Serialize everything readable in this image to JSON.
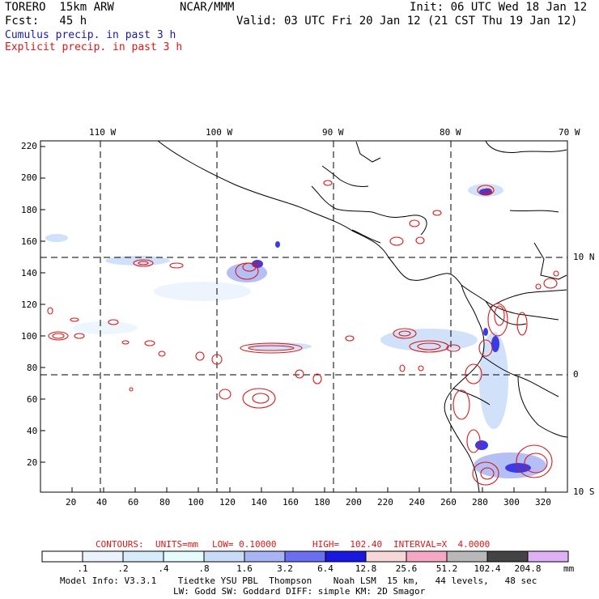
{
  "header": {
    "model_line": "TORERO  15km ARW",
    "org": "NCAR/MMM",
    "init": "Init: 06 UTC Wed 18 Jan 12",
    "fcst": "Fcst:   45 h",
    "valid": "Valid: 03 UTC Fri 20 Jan 12 (21 CST Thu 19 Jan 12)",
    "cumulus_label": "Cumulus precip. in past 3 h",
    "explicit_label": "Explicit precip. in past 3 h",
    "cumulus_color": "#1a1aa6",
    "explicit_color": "#d81818"
  },
  "map": {
    "top_longitudes": [
      "110 W",
      "100 W",
      "90 W",
      "80 W",
      "70 W"
    ],
    "right_latitudes": [
      "10 N",
      "0",
      "10 S"
    ],
    "y_ticks": [
      "220",
      "200",
      "180",
      "160",
      "140",
      "120",
      "100",
      "80",
      "60",
      "40",
      "20"
    ],
    "x_ticks": [
      "20",
      "40",
      "60",
      "80",
      "100",
      "120",
      "140",
      "160",
      "180",
      "200",
      "220",
      "240",
      "260",
      "280",
      "300",
      "320"
    ]
  },
  "contours_line": {
    "label": "CONTOURS:",
    "units": "UNITS=mm",
    "low": "LOW= 0.10000",
    "high": "HIGH=  102.40",
    "interval": "INTERVAL=X  4.0000"
  },
  "colorbar": {
    "labels": [
      ".1",
      ".2",
      ".4",
      ".8",
      "1.6",
      "3.2",
      "6.4",
      "12.8",
      "25.6",
      "51.2",
      "102.4",
      "204.8"
    ],
    "units": "mm",
    "colors": [
      "#ffffff",
      "#eaf3fd",
      "#d6ecfb",
      "#e6fbfb",
      "#c8dcf8",
      "#a8b4f4",
      "#6a6ef0",
      "#1a18e0",
      "#f6d8d8",
      "#f4a8c4",
      "#b8b8b8",
      "#444444",
      "#e0b0f4"
    ]
  },
  "footer": {
    "line1": "Model Info: V3.3.1    Tiedtke YSU PBL  Thompson    Noah LSM  15 km,   44 levels,   48 sec",
    "line2": "LW: Godd SW: Goddard DIFF: simple KM: 2D Smagor"
  }
}
